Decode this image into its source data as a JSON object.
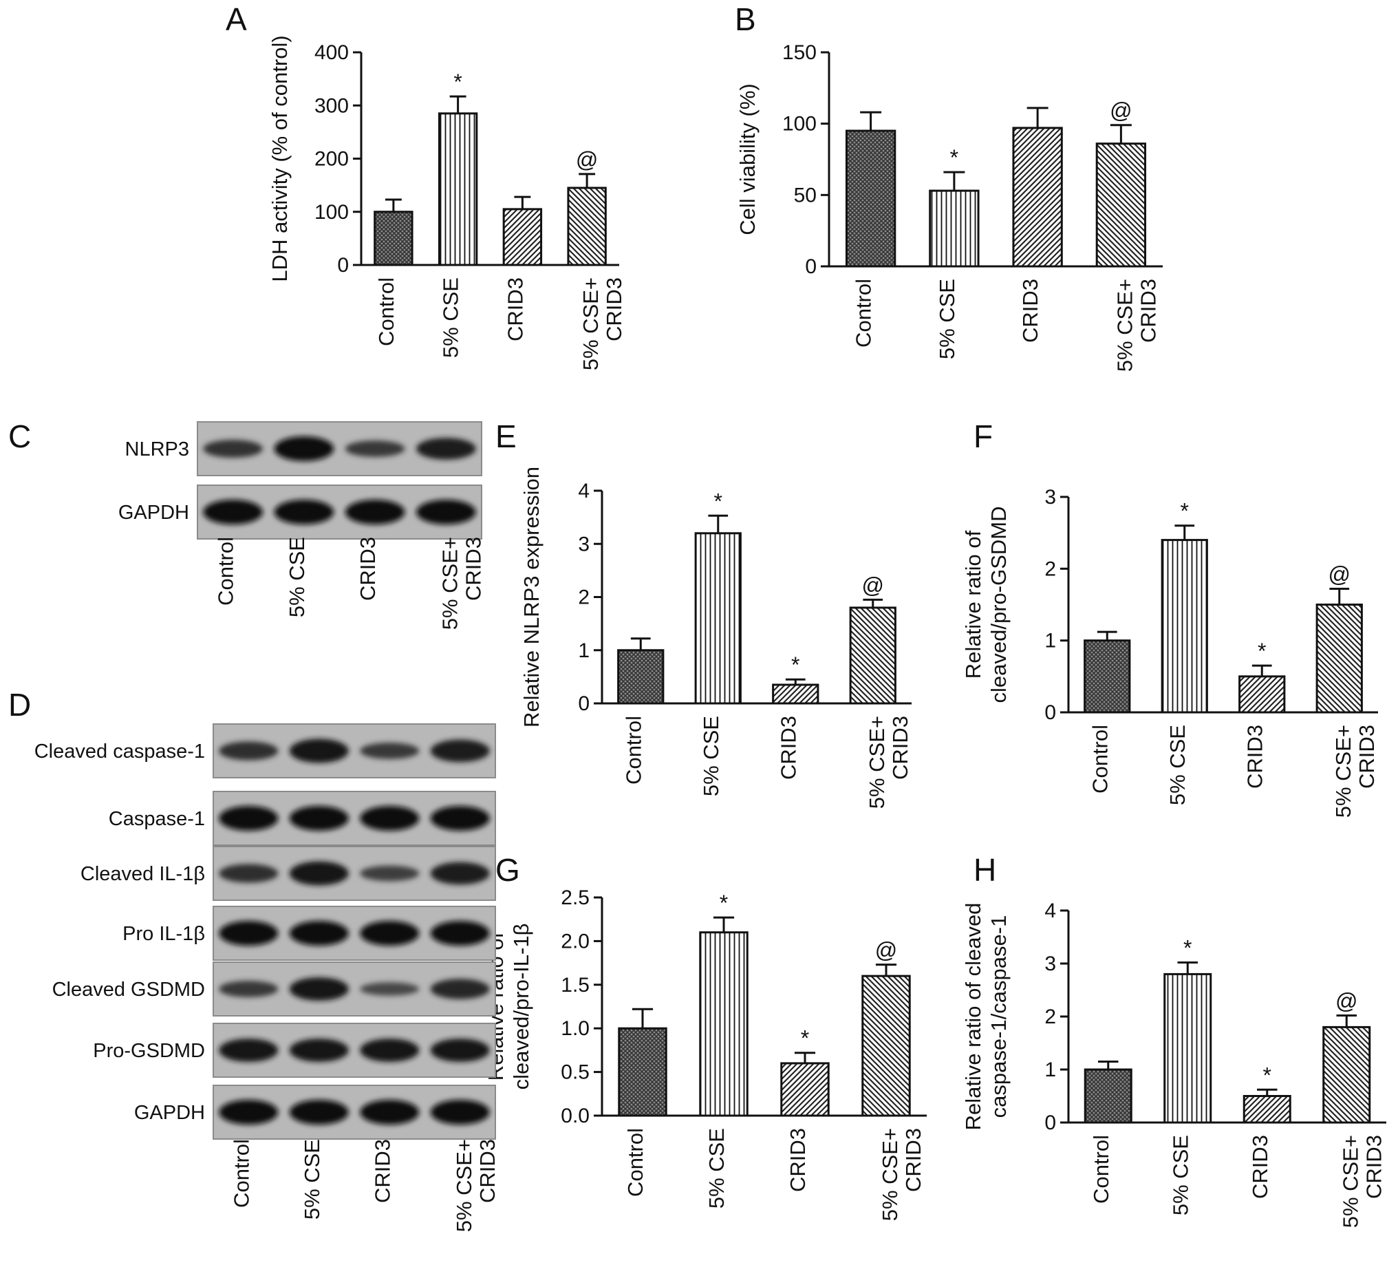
{
  "categories": [
    "Control",
    "5% CSE",
    "CRID3",
    "5% CSE+\nCRID3"
  ],
  "category_patterns": [
    "crosshatch",
    "vertical",
    "diag-right",
    "diag-left"
  ],
  "chart_data": [
    {
      "panel": "A",
      "type": "bar",
      "ylabel": "LDH activity (% of control)",
      "ylim": [
        0,
        400
      ],
      "yticks": [
        "0",
        "100",
        "200",
        "300",
        "400"
      ],
      "values": [
        100,
        285,
        105,
        145
      ],
      "errors": [
        23,
        32,
        23,
        26
      ],
      "markers": [
        "",
        "*",
        "",
        "@"
      ]
    },
    {
      "panel": "B",
      "type": "bar",
      "ylabel": "Cell viability (%)",
      "ylim": [
        0,
        150
      ],
      "yticks": [
        "0",
        "50",
        "100",
        "150"
      ],
      "values": [
        95,
        53,
        97,
        86
      ],
      "errors": [
        13,
        13,
        14,
        13
      ],
      "markers": [
        "",
        "*",
        "",
        "@"
      ]
    },
    {
      "panel": "E",
      "type": "bar",
      "ylabel": "Relative NLRP3 expression",
      "ylim": [
        0,
        4
      ],
      "yticks": [
        "0",
        "1",
        "2",
        "3",
        "4"
      ],
      "values": [
        1.0,
        3.2,
        0.35,
        1.8
      ],
      "errors": [
        0.22,
        0.33,
        0.1,
        0.15
      ],
      "markers": [
        "",
        "*",
        "*",
        "@"
      ]
    },
    {
      "panel": "F",
      "type": "bar",
      "ylabel": "Relative ratio of\ncleaved/pro-GSDMD",
      "ylim": [
        0,
        3
      ],
      "yticks": [
        "0",
        "1",
        "2",
        "3"
      ],
      "values": [
        1.0,
        2.4,
        0.5,
        1.5
      ],
      "errors": [
        0.12,
        0.2,
        0.15,
        0.22
      ],
      "markers": [
        "",
        "*",
        "*",
        "@"
      ]
    },
    {
      "panel": "G",
      "type": "bar",
      "ylabel": "Relative ratio of\ncleaved/pro-IL-1β",
      "ylim": [
        0,
        2.5
      ],
      "yticks": [
        "0.0",
        "0.5",
        "1.0",
        "1.5",
        "2.0",
        "2.5"
      ],
      "values": [
        1.0,
        2.1,
        0.6,
        1.6
      ],
      "errors": [
        0.22,
        0.17,
        0.12,
        0.13
      ],
      "markers": [
        "",
        "*",
        "*",
        "@"
      ]
    },
    {
      "panel": "H",
      "type": "bar",
      "ylabel": "Relative ratio of cleaved\ncaspase-1/caspase-1",
      "ylim": [
        0,
        4
      ],
      "yticks": [
        "0",
        "1",
        "2",
        "3",
        "4"
      ],
      "values": [
        1.0,
        2.8,
        0.5,
        1.8
      ],
      "errors": [
        0.15,
        0.22,
        0.12,
        0.22
      ],
      "markers": [
        "",
        "*",
        "*",
        "@"
      ]
    }
  ],
  "blots": [
    {
      "panel": "C",
      "rows": [
        {
          "label": "NLRP3",
          "intensity": [
            0.55,
            1.0,
            0.45,
            0.8
          ]
        },
        {
          "label": "GAPDH",
          "intensity": [
            1.0,
            1.0,
            1.0,
            1.0
          ]
        }
      ]
    },
    {
      "panel": "D",
      "rows": [
        {
          "label": "Cleaved caspase-1",
          "intensity": [
            0.6,
            0.95,
            0.45,
            0.85
          ]
        },
        {
          "label": "Caspase-1",
          "intensity": [
            1.0,
            1.0,
            1.0,
            1.0
          ]
        },
        {
          "label": "Cleaved IL-1β",
          "intensity": [
            0.6,
            0.95,
            0.4,
            0.85
          ]
        },
        {
          "label": "Pro IL-1β",
          "intensity": [
            1.0,
            1.0,
            1.0,
            1.0
          ]
        },
        {
          "label": "Cleaved GSDMD",
          "intensity": [
            0.45,
            0.9,
            0.25,
            0.7
          ]
        },
        {
          "label": "Pro-GSDMD",
          "intensity": [
            0.9,
            0.9,
            0.9,
            0.9
          ]
        },
        {
          "label": "GAPDH",
          "intensity": [
            1.0,
            1.0,
            1.0,
            1.0
          ]
        }
      ]
    }
  ]
}
